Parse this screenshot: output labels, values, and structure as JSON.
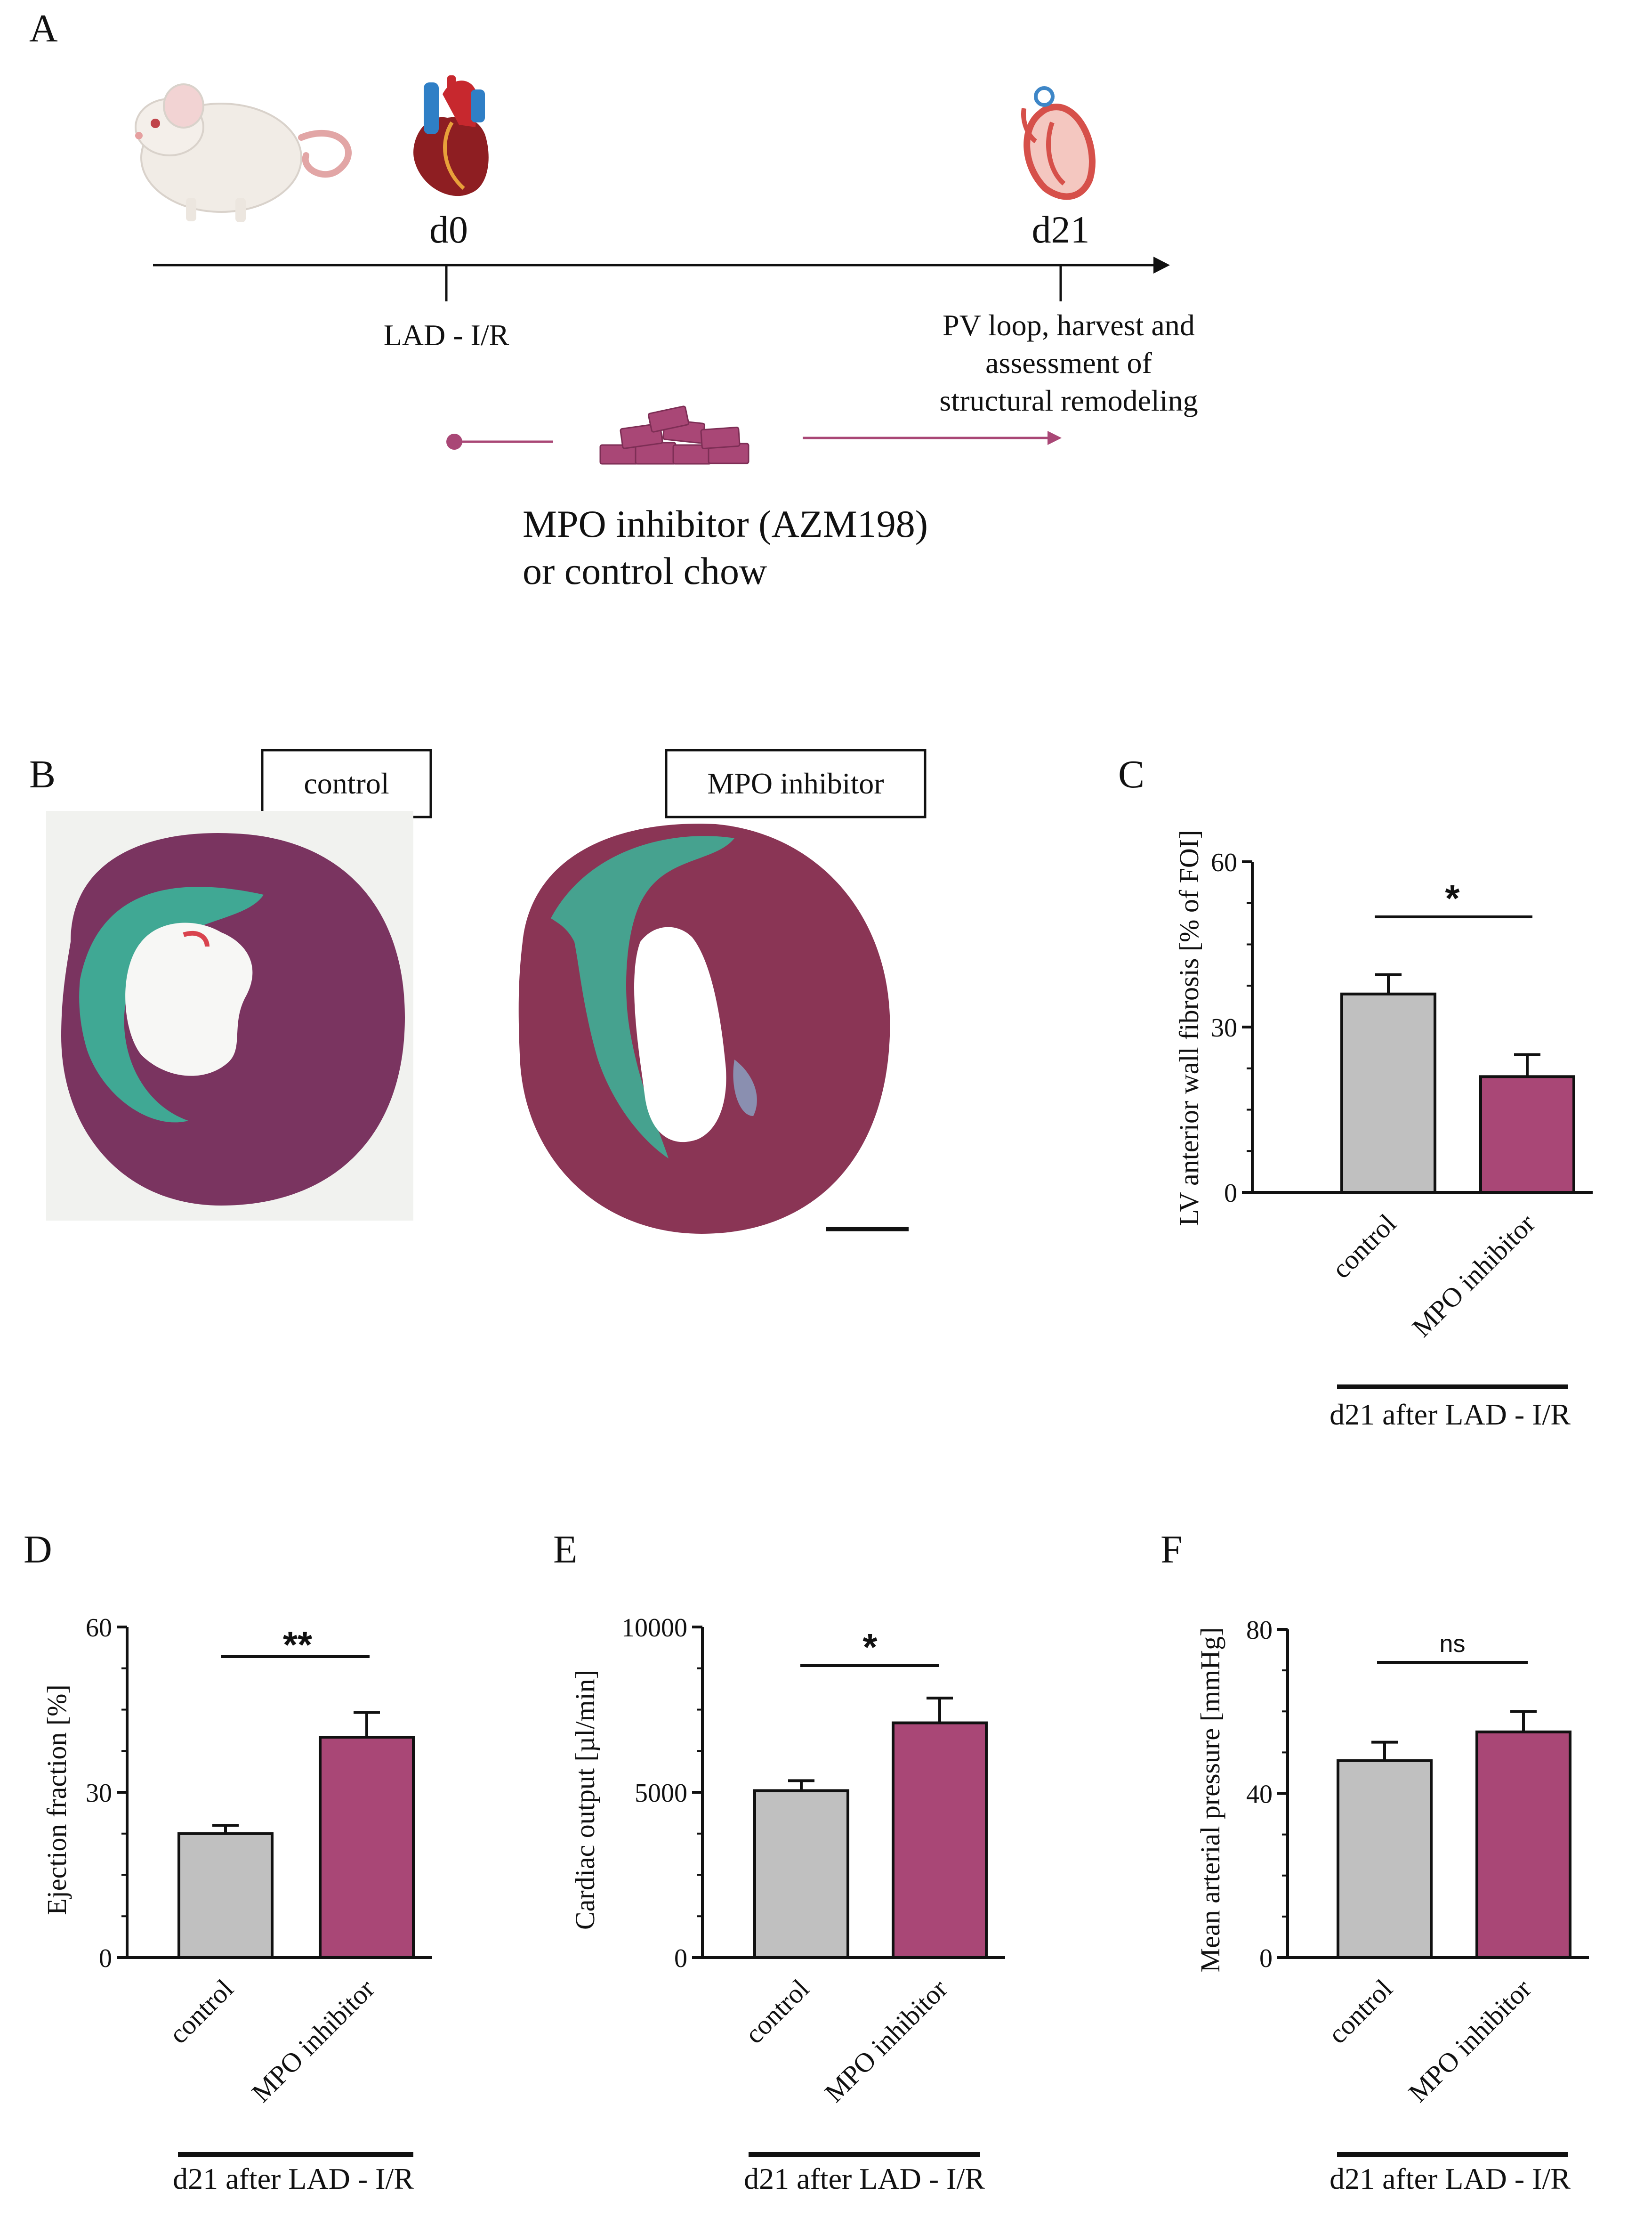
{
  "panel_letters": {
    "A": "A",
    "B": "B",
    "C": "C",
    "D": "D",
    "E": "E",
    "F": "F"
  },
  "timeline": {
    "d0": "d0",
    "d21": "d21",
    "d0_event": "LAD - I/R",
    "d21_event_lines": [
      "PV loop, harvest and",
      "assessment of",
      "structural remodeling"
    ],
    "treatment_lines": [
      "MPO inhibitor (AZM198)",
      "or control chow"
    ]
  },
  "histology": {
    "control_label": "control",
    "mpo_label": "MPO inhibitor"
  },
  "colors": {
    "control": "#c0c0c0",
    "mpo": "#a94776",
    "fibrosis": "#3ab59a",
    "tissue": "#7a3460"
  },
  "footnote": "d21 after LAD - I/R",
  "chart_data": [
    {
      "panel": "C",
      "type": "bar",
      "categories": [
        "control",
        "MPO inhibitor"
      ],
      "values": [
        36,
        21
      ],
      "errors": [
        3.5,
        4
      ],
      "ylabel": "LV anterior wall fibrosis [% of FOI]",
      "ylim": [
        0,
        60
      ],
      "yticks": [
        "0",
        "30",
        "60"
      ],
      "significance": "*"
    },
    {
      "panel": "D",
      "type": "bar",
      "categories": [
        "control",
        "MPO inhibitor"
      ],
      "values": [
        22.5,
        40
      ],
      "errors": [
        1.5,
        4.5
      ],
      "ylabel": "Ejection fraction [%]",
      "ylim": [
        0,
        60
      ],
      "yticks": [
        "0",
        "30",
        "60"
      ],
      "significance": "**"
    },
    {
      "panel": "E",
      "type": "bar",
      "categories": [
        "control",
        "MPO inhibitor"
      ],
      "values": [
        5050,
        7100
      ],
      "errors": [
        300,
        750
      ],
      "ylabel": "Cardiac output [µl/min]",
      "ylim": [
        0,
        10000
      ],
      "yticks": [
        "0",
        "5000",
        "10000"
      ],
      "significance": "*"
    },
    {
      "panel": "F",
      "type": "bar",
      "categories": [
        "control",
        "MPO inhibitor"
      ],
      "values": [
        48,
        55
      ],
      "errors": [
        4.5,
        5
      ],
      "ylabel": "Mean arterial pressure [mmHg]",
      "ylim": [
        0,
        80
      ],
      "yticks": [
        "0",
        "40",
        "80"
      ],
      "significance": "ns"
    }
  ]
}
